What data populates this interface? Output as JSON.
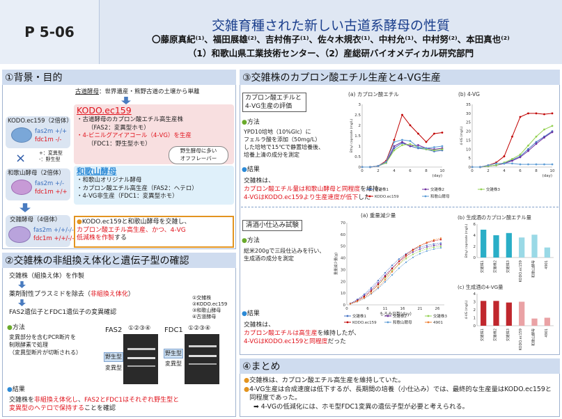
{
  "header": {
    "poster_id": "P 5-06",
    "title": "交雑育種された新しい古道系酵母の性質",
    "authors": "〇藤原真紀⁽¹⁾、福田展雄⁽²⁾、吉村侑子⁽¹⁾、佐々木規衣⁽¹⁾、中村允⁽¹⁾、中村努⁽²⁾、本田真也⁽²⁾",
    "affiliation": "（1）和歌山県工業技術センター、（2）産総研バイオメディカル研究部門"
  },
  "s1": {
    "heading": "①背景・目的",
    "kodo_note_label": "古道酵母",
    "kodo_note_rest": "：世界遺産・熊野古道の土壌から単離",
    "kodo_name": "KODO.ec159",
    "kodo_b1": "・古道酵母のカプロン酸エチル高生産株",
    "kodo_b2": "（FAS2：変異型ホモ）",
    "kodo_b3": "・4-ビニルグアイアコール（4-VG）を生産",
    "kodo_b4": "（FDC1：野生型ホモ）",
    "bubble": "野生酵母に多い\nオフフレーバー",
    "strain1": "KODO.ec159（2倍体）",
    "fas_label": "fas2m",
    "fas1_val": "+/+",
    "fdc_label": "fdc1m",
    "fdc1_val": "-/-",
    "legend_mut": "+：変異型",
    "legend_wt": "-：野生型",
    "cross": "×",
    "strain2": "和歌山酵母（2倍体）",
    "fas2_val": "+/-",
    "fdc2_val": "+/+",
    "waka_name": "和歌山酵母",
    "waka_b1": "・和歌山オリジナル酵母",
    "waka_b2": "・カプロン酸エチル高生産（FAS2：ヘテロ）",
    "waka_b3": "・4-VG非生産（FDC1：変異型ホモ）",
    "strain3": "交雑酵母（4倍体）",
    "fas3_val": "+/+/-/-",
    "fdc3_val": "+/+/-/-",
    "goal_pre": "KODO.ec159と和歌山酵母を交雑し、",
    "goal_r1": "カプロン酸エチル高生産、かつ、4-VG",
    "goal_r2": "低減株を作製",
    "goal_post": "する"
  },
  "s2": {
    "heading": "②交雑株の非組換え体化と遺伝子型の確認",
    "step1": "交雑株（組換え体）を作製",
    "step2_pre": "薬剤耐性プラスミドを除去（",
    "step2_red": "非組換え体化",
    "step2_post": "）",
    "step3": "FAS2遺伝子とFDC1遺伝子の変異確認",
    "method_label": "方法",
    "method_text": "変異部分を含むPCR断片を\n制限酵素で処理\n（変異型断片が切断される）",
    "gel1_label": "FAS2",
    "gel2_label": "FDC1",
    "lanes": "①②③④",
    "gel_wt": "野生型",
    "gel_mut": "変異型",
    "lane_legend": [
      "①交雑株",
      "②KODO.ec159",
      "③和歌山酵母",
      "④古道酵母"
    ],
    "result_label": "結果",
    "res_pre": "交雑株を",
    "res_r1": "非組換え体化し",
    "res_mid": "、",
    "res_r2": "FAS2とFDC1はそれぞれ野生型と",
    "res_r3": "変異型のヘテロで保持する",
    "res_post": "ことを確認"
  },
  "s3": {
    "heading": "③交雑株のカプロン酸エチル生産と4-VG生産",
    "box1": "カプロン酸エチルと\n4-VG生産の評価",
    "method_label": "方法",
    "method_text": "YPD10培地（10%Glc）に\nフェルラ酸を添加（50mg/L）\nした培地で15℃で静置培養後、\n培養上清の成分を測定",
    "result_label": "結果",
    "res_pre": "交雑株は、",
    "res_r1": "カプロン酸エチル量は和歌山酵母と同程度",
    "res_mid": "を維持、",
    "res_r2": "4-VGはKODO.ec159より生産速度が低下",
    "res_post": "した",
    "box2": "清酒小仕込み試験",
    "method2_text": "総米200gで三段仕込みを行い、\n生成酒の成分を測定",
    "res2_pre": "交雑株は、",
    "res2_r1": "カプロン酸エチルは高生産",
    "res2_mid": "を維持したが、",
    "res2_r2": "4-VGはKODO.ec159と同程度",
    "res2_post": "だった"
  },
  "s4": {
    "heading": "④まとめ",
    "b1": "交雑株は、カプロン酸エチル高生産を維持していた。",
    "b2": "4-VG生産は合成速度は低下するが、長期間の培養（小仕込み）では、最終的な生産量はKODO.ec159と同程度であった。",
    "b3": "➡ 4-VGの低減化には、ホモ型FDC1変異の遺伝子型が必要と考えられる。"
  },
  "chart_data": [
    {
      "type": "line",
      "title": "(a) カプロン酸エチル",
      "xlabel": "(day)",
      "ylabel": "Ethyl caproate (mg/L)",
      "xlim": [
        0,
        10
      ],
      "ylim": [
        0,
        3
      ],
      "yticks": [
        0,
        0.5,
        1,
        1.5,
        2,
        2.5,
        3
      ],
      "xticks": [
        0,
        2,
        4,
        6,
        8,
        10
      ],
      "x": [
        0,
        1,
        2,
        3,
        4,
        5,
        6,
        7,
        8,
        9,
        10
      ],
      "series": [
        {
          "name": "交雑株1",
          "color": "#4472c4",
          "values": [
            0,
            0,
            0.05,
            0.2,
            0.9,
            1.15,
            1.0,
            0.9,
            0.85,
            0.75,
            0.8
          ]
        },
        {
          "name": "交雑株2",
          "color": "#7030a0",
          "values": [
            0,
            0,
            0.05,
            0.2,
            1.0,
            1.2,
            1.0,
            1.05,
            0.9,
            0.85,
            0.9
          ]
        },
        {
          "name": "交雑株3",
          "color": "#92d050",
          "values": [
            0,
            0,
            0.05,
            0.2,
            0.8,
            1.05,
            1.1,
            0.95,
            0.85,
            0.8,
            0.85
          ]
        },
        {
          "name": "KODO.ec159",
          "color": "#c00000",
          "values": [
            0,
            0,
            0.05,
            0.3,
            1.3,
            2.5,
            2.0,
            1.6,
            1.2,
            1.6,
            1.65
          ]
        },
        {
          "name": "和歌山酵母",
          "color": "#5b9bd5",
          "values": [
            0,
            0,
            0.05,
            0.25,
            1.2,
            1.3,
            1.25,
            0.95,
            0.9,
            0.95,
            1.0
          ]
        }
      ]
    },
    {
      "type": "line",
      "title": "(b) 4-VG",
      "xlabel": "(day)",
      "ylabel": "4-VG (mg/L)",
      "xlim": [
        0,
        10
      ],
      "ylim": [
        0,
        35
      ],
      "yticks": [
        0,
        5,
        10,
        15,
        20,
        25,
        30,
        35
      ],
      "xticks": [
        0,
        2,
        4,
        6,
        8,
        10
      ],
      "x": [
        0,
        1,
        2,
        3,
        4,
        5,
        6,
        7,
        8,
        9,
        10
      ],
      "series": [
        {
          "name": "交雑株1",
          "color": "#4472c4",
          "values": [
            0,
            0,
            0.5,
            1,
            2,
            4,
            6,
            10,
            14,
            17,
            20
          ]
        },
        {
          "name": "交雑株2",
          "color": "#7030a0",
          "values": [
            0,
            0,
            0.5,
            1,
            2,
            3.5,
            5.5,
            9,
            13,
            16.5,
            19.5
          ]
        },
        {
          "name": "交雑株3",
          "color": "#92d050",
          "values": [
            0,
            0,
            0.5,
            1,
            2.5,
            4.5,
            7,
            12,
            17,
            21,
            23
          ]
        },
        {
          "name": "KODO.ec159",
          "color": "#c00000",
          "values": [
            0,
            0,
            1,
            2.5,
            6,
            17,
            28,
            30,
            30,
            29.5,
            30
          ]
        },
        {
          "name": "和歌山酵母",
          "color": "#5b9bd5",
          "values": [
            0,
            0,
            1,
            2,
            2,
            2,
            1.5,
            1.5,
            1.5,
            1.5,
            1.5
          ]
        }
      ]
    },
    {
      "type": "line",
      "title": "(a) 重量減少量",
      "xlabel": "もろみ日数(day)",
      "ylabel": "重量減少量(g)",
      "xlim": [
        0,
        28
      ],
      "ylim": [
        0,
        70
      ],
      "yticks": [
        0,
        10,
        20,
        30,
        40,
        50,
        60,
        70
      ],
      "xticks": [
        0,
        6,
        11,
        16,
        21,
        26
      ],
      "series": [
        {
          "name": "交雑株1",
          "color": "#4472c4"
        },
        {
          "name": "交雑株2",
          "color": "#7030a0"
        },
        {
          "name": "交雑株3",
          "color": "#92d050"
        },
        {
          "name": "KODO.ec159",
          "color": "#c00000"
        },
        {
          "name": "和歌山酵母",
          "color": "#5b9bd5"
        },
        {
          "name": "4901",
          "color": "#ed7d31"
        }
      ]
    },
    {
      "type": "bar",
      "title": "(b) 生成酒のカプロン酸エチル量",
      "ylabel": "Ethyl caproate (mg/L)",
      "ylim": [
        0,
        6
      ],
      "yticks": [
        0,
        2,
        4,
        6
      ],
      "categories": [
        "交雑株1",
        "交雑株2",
        "交雑株3",
        "KODO.ec159",
        "和歌山酵母",
        "4901"
      ],
      "values": [
        5.0,
        4.0,
        4.4,
        3.6,
        4.1,
        1.8
      ],
      "colors": [
        "#2aaec7",
        "#2aaec7",
        "#2aaec7",
        "#9ad9e6",
        "#9ad9e6",
        "#9ad9e6"
      ]
    },
    {
      "type": "bar",
      "title": "(c) 生成酒の4-VG量",
      "ylabel": "4-VG (mg/L)",
      "ylim": [
        0,
        4
      ],
      "yticks": [
        0,
        1,
        2,
        3,
        4
      ],
      "categories": [
        "交雑株1",
        "交雑株2",
        "交雑株3",
        "KODO.ec159",
        "和歌山酵母",
        "4901"
      ],
      "values": [
        3.1,
        3.1,
        2.9,
        3.0,
        0.9,
        1.0
      ],
      "colors": [
        "#c0272d",
        "#c0272d",
        "#c0272d",
        "#eaa2a5",
        "#eaa2a5",
        "#eaa2a5"
      ]
    }
  ]
}
